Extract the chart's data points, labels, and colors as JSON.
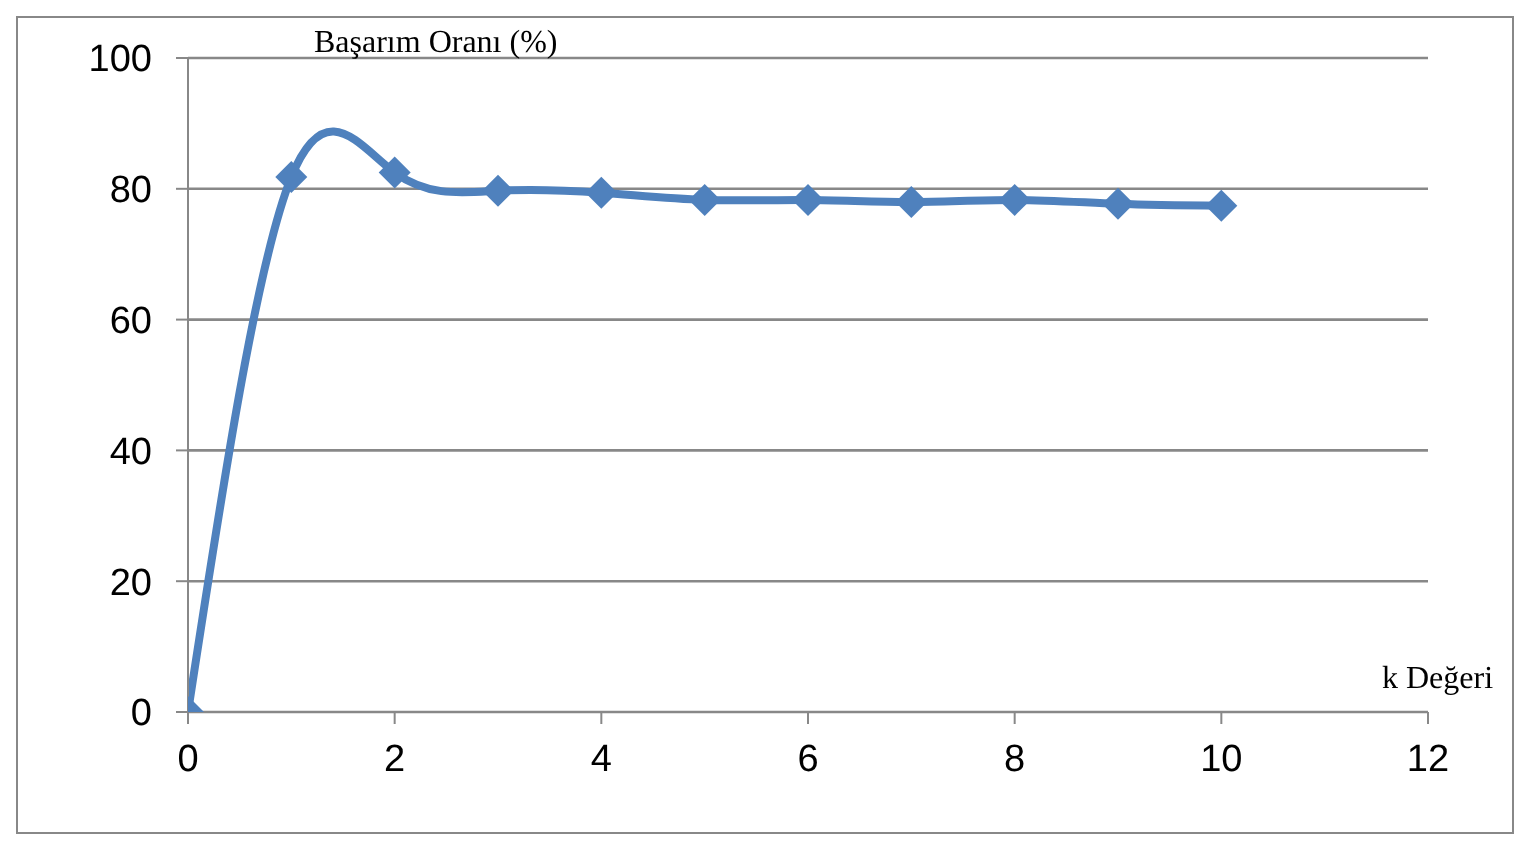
{
  "chart_data": {
    "type": "line",
    "xlabel": "k Değeri",
    "ylabel": "Başarım Oranı (%)",
    "x": [
      0,
      1,
      2,
      3,
      4,
      5,
      6,
      7,
      8,
      9,
      10
    ],
    "series": [
      {
        "color": "#4f81bd",
        "values": [
          0,
          81.8,
          82.5,
          79.7,
          79.4,
          78.3,
          78.3,
          78,
          78.3,
          77.7,
          77.4
        ]
      }
    ],
    "xlim": [
      0,
      12
    ],
    "xticks": [
      0,
      2,
      4,
      6,
      8,
      10,
      12
    ],
    "ylim": [
      0,
      100
    ],
    "yticks": [
      0,
      20,
      40,
      60,
      80,
      100
    ],
    "grid": "y",
    "marker": "diamond",
    "line_style": "solid"
  }
}
